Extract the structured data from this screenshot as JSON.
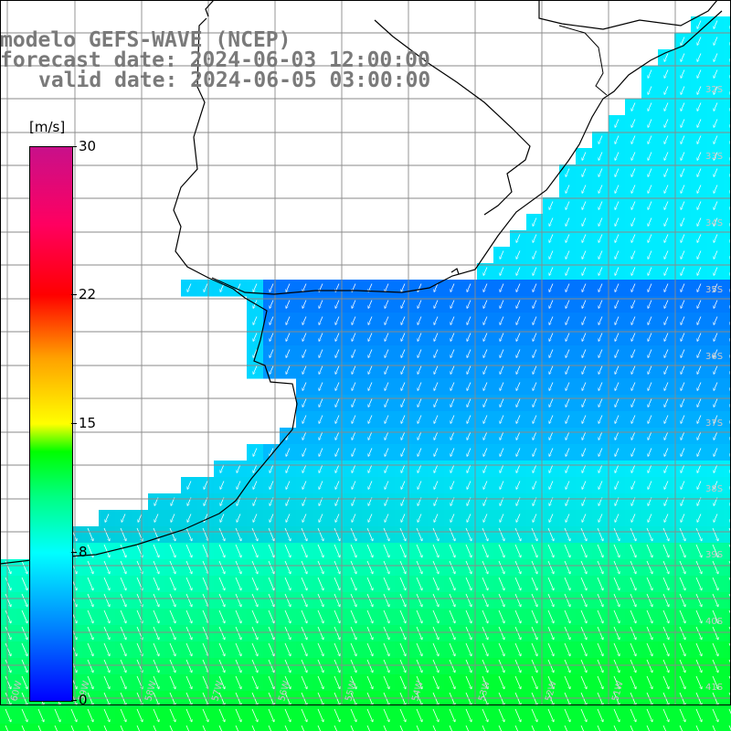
{
  "title": {
    "model": "modelo GEFS-WAVE (NCEP)",
    "forecast": "forecast date: 2024-06-03 12:00:00",
    "valid": "valid date: 2024-06-05 03:00:00"
  },
  "colorbar": {
    "unit": "[m/s]",
    "ticks": [
      "30",
      "22",
      "15",
      "8",
      "0"
    ],
    "tick_values": [
      30,
      22,
      15,
      8,
      0
    ],
    "range": [
      0,
      30
    ],
    "colors": [
      "#0000ff",
      "#0080ff",
      "#00ffff",
      "#00ff80",
      "#00ff00",
      "#ffff00",
      "#ffa000",
      "#ff0000",
      "#c8108a"
    ]
  },
  "map": {
    "land_color": "#ffffff",
    "coast_color": "#000000",
    "grid_color": "#8a8a8a",
    "lat_labels": [
      "32S",
      "33S",
      "34S",
      "35S",
      "36S",
      "37S",
      "38S",
      "39S",
      "40S",
      "41S"
    ],
    "lon_labels": [
      "60W",
      "59W",
      "58W",
      "57W",
      "56W",
      "55W",
      "54W",
      "53W",
      "52W",
      "51W"
    ],
    "grid": true
  }
}
